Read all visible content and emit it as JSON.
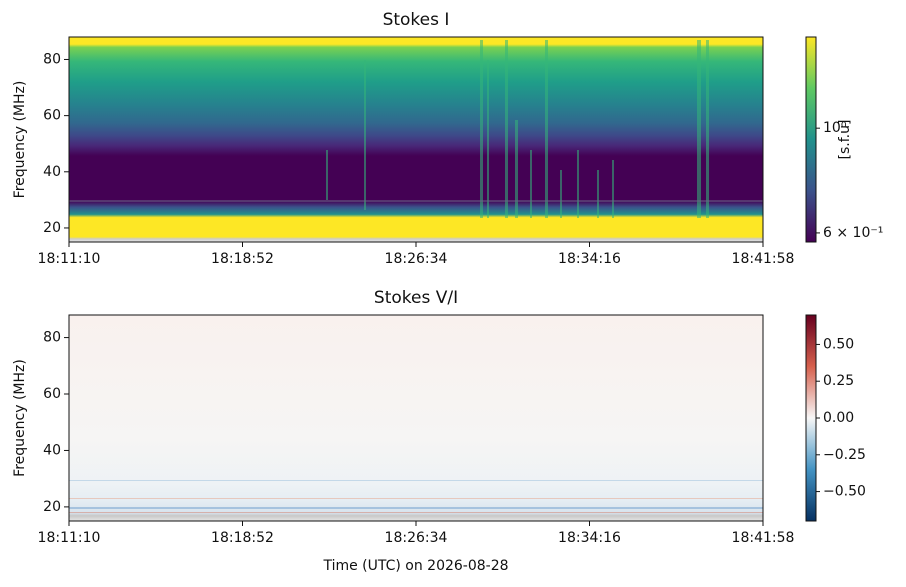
{
  "chart_data": [
    {
      "type": "heatmap",
      "title": "Stokes I",
      "ylabel": "Frequency (MHz)",
      "xlim": [
        65470,
        67318
      ],
      "xticks": [
        {
          "value": 65470,
          "label": "18:11:10"
        },
        {
          "value": 65932,
          "label": "18:18:52"
        },
        {
          "value": 66394,
          "label": "18:26:34"
        },
        {
          "value": 66856,
          "label": "18:34:16"
        },
        {
          "value": 67318,
          "label": "18:41:58"
        }
      ],
      "ylim": [
        15,
        88
      ],
      "yticks": [
        20,
        40,
        60,
        80
      ],
      "colormap": "viridis",
      "color_scale": "log",
      "clim": [
        0.574,
        1.56
      ],
      "cticks": [
        {
          "value": 0.6,
          "label": "6 × 10⁻¹"
        },
        {
          "value": 1,
          "label": "10⁰"
        }
      ],
      "colorbar_label": "[s.f.u]"
    },
    {
      "type": "heatmap",
      "title": "Stokes V/I",
      "ylabel": "Frequency (MHz)",
      "xlabel": "Time (UTC) on 2026-08-28",
      "xlim": [
        65470,
        67318
      ],
      "xticks": [
        {
          "value": 65470,
          "label": "18:11:10"
        },
        {
          "value": 65932,
          "label": "18:18:52"
        },
        {
          "value": 66394,
          "label": "18:26:34"
        },
        {
          "value": 66856,
          "label": "18:34:16"
        },
        {
          "value": 67318,
          "label": "18:41:58"
        }
      ],
      "ylim": [
        15,
        88
      ],
      "yticks": [
        20,
        40,
        60,
        80
      ],
      "colormap": "RdBu_r",
      "color_scale": "linear",
      "clim": [
        -0.7,
        0.7
      ],
      "cticks": [
        {
          "value": -0.5,
          "label": "−0.50"
        },
        {
          "value": -0.25,
          "label": "−0.25"
        },
        {
          "value": 0,
          "label": "0.00"
        },
        {
          "value": 0.25,
          "label": "0.25"
        },
        {
          "value": 0.5,
          "label": "0.50"
        }
      ]
    }
  ]
}
